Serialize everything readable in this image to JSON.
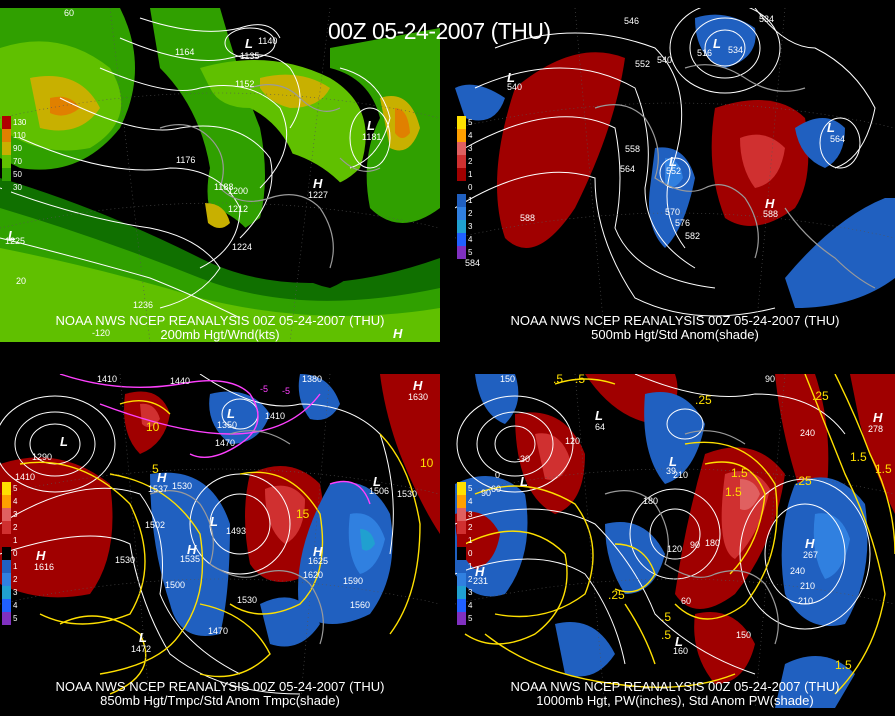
{
  "title": "00Z 05-24-2007 (THU)",
  "panels": [
    {
      "caption1": "NOAA NWS NCEP REANALYSIS 00Z 05-24-2007 (THU)",
      "caption2": "200mb Hgt/Wnd(kts)",
      "legend": [
        {
          "label": "130",
          "color": "#b00000"
        },
        {
          "label": "110",
          "color": "#e08000"
        },
        {
          "label": "90",
          "color": "#c8b000"
        },
        {
          "label": "70",
          "color": "#60c000"
        },
        {
          "label": "50",
          "color": "#30a000"
        },
        {
          "label": "30",
          "color": "#107000"
        }
      ],
      "contours": [
        "1164",
        "1140",
        "1135",
        "1152",
        "1176",
        "1188",
        "1200",
        "1212",
        "1224",
        "1236",
        "1227",
        "1181",
        "1225"
      ],
      "axes": [
        "60",
        "-120",
        "20"
      ],
      "centers": [
        {
          "type": "L",
          "value": "1135"
        },
        {
          "type": "L",
          "value": "1181"
        },
        {
          "type": "H",
          "value": "1227"
        },
        {
          "type": "L",
          "value": "1225"
        },
        {
          "type": "H",
          "value": ""
        }
      ]
    },
    {
      "caption1": "NOAA NWS NCEP REANALYSIS 00Z 05-24-2007 (THU)",
      "caption2": "500mb Hgt/Std Anom(shade)",
      "legend": [
        {
          "label": "5",
          "color": "#ffe000"
        },
        {
          "label": "4",
          "color": "#ffa000"
        },
        {
          "label": "3",
          "color": "#e06060"
        },
        {
          "label": "2",
          "color": "#d03030"
        },
        {
          "label": "1",
          "color": "#a00000"
        },
        {
          "label": "0",
          "color": "#000000"
        },
        {
          "label": "1",
          "color": "#2060c0"
        },
        {
          "label": "2",
          "color": "#3080e0"
        },
        {
          "label": "3",
          "color": "#20a0d0"
        },
        {
          "label": "4",
          "color": "#2060ff"
        },
        {
          "label": "5",
          "color": "#8030c0"
        }
      ],
      "contours": [
        "546",
        "534",
        "552",
        "540",
        "516",
        "534",
        "558",
        "564",
        "552",
        "588",
        "570",
        "576",
        "582",
        "564",
        "540",
        "584"
      ],
      "centers": [
        {
          "type": "L",
          "value": "540"
        },
        {
          "type": "L",
          "value": "516"
        },
        {
          "type": "L",
          "value": "552"
        },
        {
          "type": "L",
          "value": "584"
        },
        {
          "type": "H",
          "value": "588"
        },
        {
          "type": "H",
          "value": ""
        }
      ]
    },
    {
      "caption1": "NOAA NWS NCEP REANALYSIS 00Z 05-24-2007 (THU)",
      "caption2": "850mb Hgt/Tmpc/Std Anom Tmpc(shade)",
      "legend": [
        {
          "label": "5",
          "color": "#ffe000"
        },
        {
          "label": "4",
          "color": "#ffa000"
        },
        {
          "label": "3",
          "color": "#e06060"
        },
        {
          "label": "2",
          "color": "#d03030"
        },
        {
          "label": "1",
          "color": "#a00000"
        },
        {
          "label": "0",
          "color": "#000000"
        },
        {
          "label": "1",
          "color": "#2060c0"
        },
        {
          "label": "2",
          "color": "#3080e0"
        },
        {
          "label": "3",
          "color": "#20a0d0"
        },
        {
          "label": "4",
          "color": "#2060ff"
        },
        {
          "label": "5",
          "color": "#8030c0"
        }
      ],
      "contours": [
        "1410",
        "1440",
        "1380",
        "1350",
        "1410",
        "1470",
        "1290",
        "1410",
        "1530",
        "1502",
        "1530",
        "1500",
        "1530",
        "1620",
        "1590",
        "1560",
        "1470",
        "1506",
        "1530",
        "10",
        "15",
        "10",
        "-5",
        "5",
        "-5"
      ],
      "centers": [
        {
          "type": "L",
          "value": "1290"
        },
        {
          "type": "L",
          "value": "1350"
        },
        {
          "type": "H",
          "value": "1537"
        },
        {
          "type": "H",
          "value": "1616"
        },
        {
          "type": "H",
          "value": "1535"
        },
        {
          "type": "H",
          "value": "1625"
        },
        {
          "type": "H",
          "value": "1630"
        },
        {
          "type": "L",
          "value": "1506"
        },
        {
          "type": "L",
          "value": "1472"
        },
        {
          "type": "L",
          "value": "1493"
        }
      ]
    },
    {
      "caption1": "NOAA NWS NCEP REANALYSIS 00Z 05-24-2007 (THU)",
      "caption2": "1000mb Hgt, PW(inches), Std Anom PW(shade)",
      "legend": [
        {
          "label": "5",
          "color": "#ffe000"
        },
        {
          "label": "4",
          "color": "#ffa000"
        },
        {
          "label": "3",
          "color": "#e06060"
        },
        {
          "label": "2",
          "color": "#d03030"
        },
        {
          "label": "1",
          "color": "#a00000"
        },
        {
          "label": "0",
          "color": "#000000"
        },
        {
          "label": "1",
          "color": "#2060c0"
        },
        {
          "label": "2",
          "color": "#3080e0"
        },
        {
          "label": "3",
          "color": "#20a0d0"
        },
        {
          "label": "4",
          "color": "#2060ff"
        },
        {
          "label": "5",
          "color": "#8030c0"
        }
      ],
      "contours": [
        "150",
        "-30",
        "0",
        "60",
        "90",
        "120",
        "180",
        "210",
        "240",
        "120",
        "150",
        "90",
        "60",
        "180",
        "210",
        "240",
        "90",
        "270",
        "210"
      ],
      "pw_contours": [
        ".5",
        ".5",
        "1.5",
        ".25",
        "1.5",
        ".25",
        ".25",
        "1.5",
        "1.5",
        ".25",
        ".5",
        ".5",
        "1.5"
      ],
      "centers": [
        {
          "type": "L",
          "value": "64"
        },
        {
          "type": "L",
          "value": "39"
        },
        {
          "type": "H",
          "value": "278"
        },
        {
          "type": "H",
          "value": "267"
        },
        {
          "type": "H",
          "value": "231"
        },
        {
          "type": "L",
          "value": "34"
        },
        {
          "type": "L",
          "value": "160"
        }
      ]
    }
  ]
}
